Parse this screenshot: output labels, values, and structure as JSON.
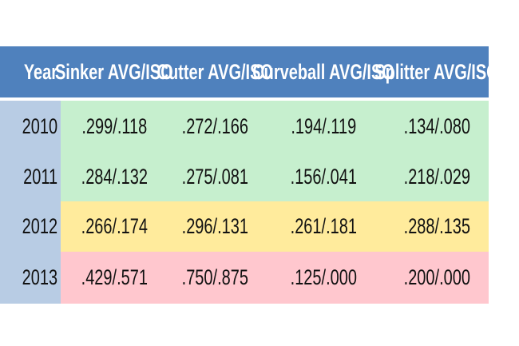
{
  "table": {
    "header": [
      "Year",
      "Sinker AVG/ISO",
      "Cutter AVG/ISO",
      "Curveball AVG/ISO",
      "Splitter AVG/ISO"
    ],
    "rows": [
      [
        "2010",
        ".299/.118",
        ".272/.166",
        ".194/.119",
        ".134/.080"
      ],
      [
        "2011",
        ".284/.132",
        ".275/.081",
        ".156/.041",
        ".218/.029"
      ],
      [
        "2012",
        ".266/.174",
        ".296/.131",
        ".261/.181",
        ".288/.135"
      ],
      [
        "2013",
        ".429/.571",
        ".750/.875",
        ".125/.000",
        ".200/.000"
      ]
    ]
  }
}
